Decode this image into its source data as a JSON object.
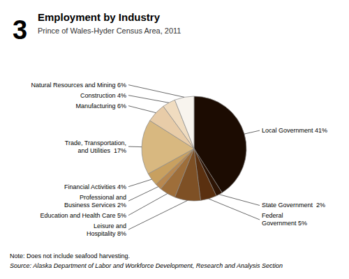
{
  "chart_data": {
    "type": "pie",
    "title": "Employment by Industry",
    "subtitle": "Prince of Wales-Hyder Census Area, 2011",
    "annotations": [
      "3",
      "Note: Does not include seafood harvesting.",
      "Source: Alaska Department of Labor and Workforce Development, Research and Analysis Section"
    ],
    "categories": [
      "Local Government 41%",
      "State Government  2%",
      "Federal\nGovernment 5%",
      "Leisure and\nHospitality 8%",
      "Education and Health Care 5%",
      "Professional and\nBusiness Services 2%",
      "Financial Activities 4%",
      "Trade, Transportation,\nand Utilities  17%",
      "Manufacturing 6%",
      "Construction 4%",
      "Natural Resources and Mining 6%"
    ],
    "values": [
      41,
      2,
      5,
      8,
      5,
      2,
      4,
      17,
      6,
      4,
      6
    ],
    "colors": [
      "#1c0c02",
      "#2e1505",
      "#5a3010",
      "#7e5025",
      "#9e6e3a",
      "#b88850",
      "#c8a060",
      "#d8b880",
      "#e8cca8",
      "#f0dcc0",
      "#f8f4ee"
    ]
  }
}
